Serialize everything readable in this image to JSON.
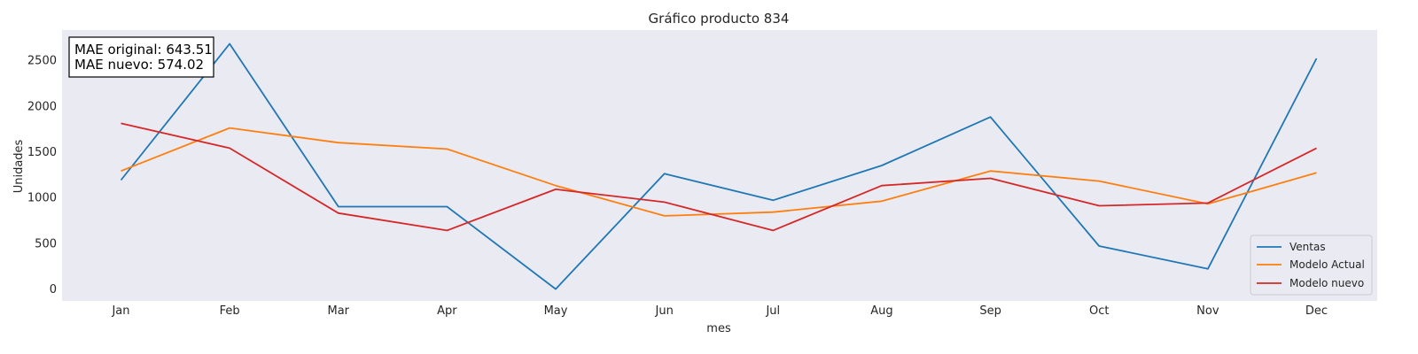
{
  "chart_data": {
    "type": "line",
    "title": "Gráfico producto 834",
    "xlabel": "mes",
    "ylabel": "Unidades",
    "categories": [
      "Jan",
      "Feb",
      "Mar",
      "Apr",
      "May",
      "Jun",
      "Jul",
      "Aug",
      "Sep",
      "Oct",
      "Nov",
      "Dec"
    ],
    "ylim": [
      -130,
      2830
    ],
    "yticks": [
      0,
      500,
      1000,
      1500,
      2000,
      2500
    ],
    "grid": false,
    "legend_position": "bottom-right",
    "background": "#eaeaf2",
    "series": [
      {
        "name": "Ventas",
        "color": "#1f77b4",
        "values": [
          1190,
          2680,
          900,
          900,
          0,
          1260,
          970,
          1350,
          1880,
          470,
          220,
          2520
        ]
      },
      {
        "name": "Modelo Actual",
        "color": "#ff7f0e",
        "values": [
          1290,
          1760,
          1600,
          1530,
          1130,
          800,
          840,
          960,
          1290,
          1180,
          930,
          1270
        ]
      },
      {
        "name": "Modelo nuevo",
        "color": "#d62728",
        "values": [
          1810,
          1540,
          830,
          640,
          1090,
          950,
          640,
          1130,
          1210,
          910,
          940,
          1540
        ]
      }
    ],
    "annotations": [
      "MAE original: 643.51",
      "MAE nuevo: 574.02"
    ]
  }
}
